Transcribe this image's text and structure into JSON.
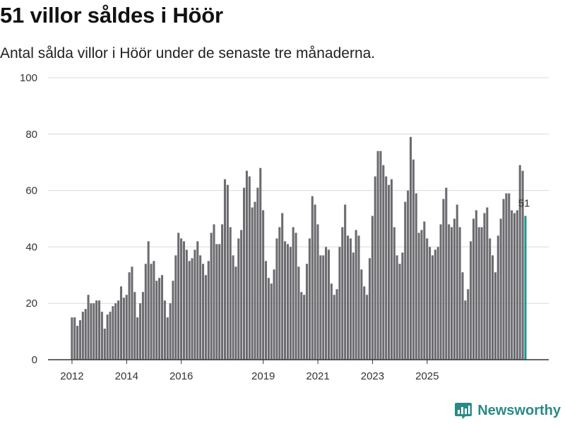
{
  "title": "51 villor såldes i Höör",
  "subtitle": "Antal sålda villor i Höör under de senaste tre månaderna.",
  "brand": {
    "name": "Newsworthy",
    "color": "#2a8a86"
  },
  "colors": {
    "bar": "#6b6b70",
    "highlight": "#1f958b",
    "grid": "#d9d9d9",
    "axis": "#333333"
  },
  "chart_data": {
    "type": "bar",
    "title": "51 villor såldes i Höör",
    "xlabel": "",
    "ylabel": "",
    "ylim": [
      0,
      100
    ],
    "yticks": [
      0,
      20,
      40,
      60,
      80,
      100
    ],
    "xticks": [
      {
        "label": "2012",
        "index": 0
      },
      {
        "label": "2014",
        "index": 20
      },
      {
        "label": "2016",
        "index": 40
      },
      {
        "label": "2019",
        "index": 70
      },
      {
        "label": "2021",
        "index": 90
      },
      {
        "label": "2023",
        "index": 110
      },
      {
        "label": "2025",
        "index": 130
      }
    ],
    "grid": true,
    "values": [
      15,
      15,
      12,
      14,
      17,
      18,
      23,
      20,
      20,
      21,
      21,
      17,
      11,
      16,
      17,
      19,
      20,
      21,
      26,
      22,
      23,
      31,
      33,
      24,
      15,
      20,
      24,
      34,
      42,
      34,
      35,
      28,
      29,
      30,
      21,
      15,
      20,
      28,
      37,
      45,
      43,
      42,
      39,
      35,
      36,
      39,
      42,
      37,
      34,
      30,
      35,
      45,
      48,
      41,
      41,
      48,
      64,
      62,
      47,
      37,
      33,
      43,
      46,
      61,
      67,
      65,
      54,
      56,
      61,
      68,
      53,
      35,
      29,
      27,
      32,
      43,
      47,
      52,
      42,
      41,
      40,
      47,
      45,
      33,
      24,
      23,
      34,
      43,
      58,
      55,
      48,
      37,
      37,
      40,
      39,
      27,
      23,
      25,
      40,
      47,
      55,
      44,
      43,
      38,
      46,
      44,
      32,
      26,
      23,
      36,
      51,
      65,
      74,
      74,
      69,
      65,
      62,
      64,
      47,
      37,
      34,
      38,
      56,
      60,
      79,
      71,
      59,
      45,
      46,
      49,
      43,
      40,
      37,
      39,
      40,
      48,
      57,
      61,
      48,
      47,
      50,
      55,
      47,
      31,
      21,
      25,
      42,
      50,
      53,
      47,
      47,
      52,
      54,
      43,
      37,
      31,
      44,
      50,
      57,
      59,
      59,
      53,
      52,
      53,
      69,
      67,
      51
    ],
    "highlight_index": 166,
    "highlight_label": "51"
  }
}
